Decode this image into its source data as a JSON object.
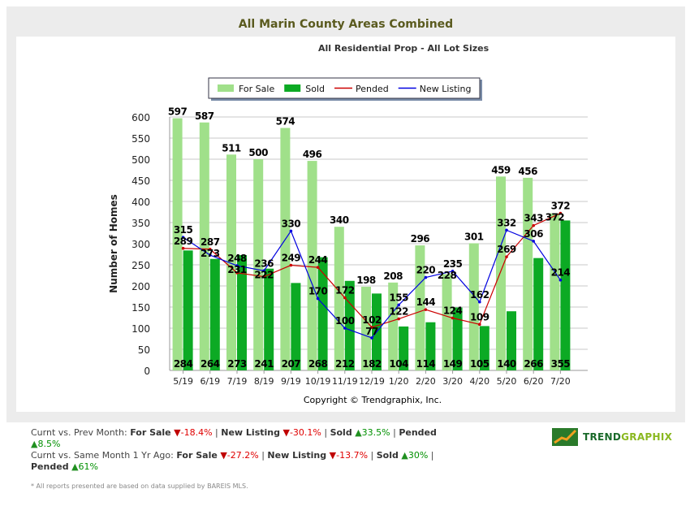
{
  "header": {
    "title": "All Marin County Areas Combined",
    "subtitle": "All Residential Prop - All Lot Sizes"
  },
  "chart_data": {
    "type": "bar",
    "title": "All Marin County Areas Combined",
    "subtitle": "All Residential Prop - All Lot Sizes",
    "ylabel": "Number of Homes",
    "xlabel": "",
    "ylim": [
      0,
      600
    ],
    "yticks": [
      0,
      50,
      100,
      150,
      200,
      250,
      300,
      350,
      400,
      450,
      500,
      550,
      600
    ],
    "grid": true,
    "legend": "top-center",
    "categories": [
      "5/19",
      "6/19",
      "7/19",
      "8/19",
      "9/19",
      "10/19",
      "11/19",
      "12/19",
      "1/20",
      "2/20",
      "3/20",
      "4/20",
      "5/20",
      "6/20",
      "7/20"
    ],
    "series": [
      {
        "name": "For Sale",
        "kind": "bar",
        "color": "#a0e08a",
        "values": [
          597,
          587,
          511,
          500,
          574,
          496,
          340,
          198,
          208,
          296,
          228,
          301,
          459,
          456,
          372
        ]
      },
      {
        "name": "Sold",
        "kind": "bar",
        "color": "#0caa24",
        "values": [
          284,
          264,
          273,
          241,
          207,
          268,
          212,
          182,
          104,
          114,
          149,
          105,
          140,
          266,
          355
        ]
      },
      {
        "name": "Pended",
        "kind": "line",
        "color": "#cc0000",
        "values": [
          289,
          287,
          231,
          222,
          249,
          244,
          172,
          102,
          122,
          144,
          124,
          109,
          269,
          343,
          372
        ]
      },
      {
        "name": "New Listing",
        "kind": "line",
        "color": "#0000e0",
        "values": [
          315,
          273,
          248,
          236,
          330,
          170,
          100,
          77,
          155,
          220,
          235,
          162,
          332,
          306,
          214
        ]
      }
    ],
    "copyright": "Copyright © Trendgraphix, Inc."
  },
  "stats": {
    "prev": {
      "label": "Curnt vs. Prev Month:",
      "for_sale": "-18.4%",
      "new_listing": "-30.1%",
      "sold": "33.5%",
      "pended": "8.5%"
    },
    "year": {
      "label": "Curnt vs. Same Month 1 Yr Ago:",
      "for_sale": "-27.2%",
      "new_listing": "-13.7%",
      "sold": "30%",
      "pended": "61%"
    },
    "names": {
      "for_sale": "For Sale",
      "new_listing": "New Listing",
      "sold": "Sold",
      "pended": "Pended"
    }
  },
  "note": "* All reports presented are based on data supplied by BAREIS MLS.",
  "logo": {
    "text_a": "TREND",
    "text_b": "GRAPHIX"
  }
}
